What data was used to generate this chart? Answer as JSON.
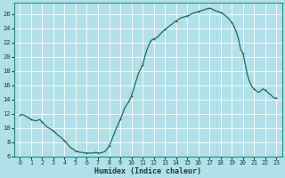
{
  "xlabel": "Humidex (Indice chaleur)",
  "bg_color": "#b2e0e8",
  "grid_color": "#ffffff",
  "line_color": "#1a6b5a",
  "xlim": [
    -0.5,
    23.5
  ],
  "ylim": [
    6,
    27.5
  ],
  "yticks": [
    6,
    8,
    10,
    12,
    14,
    16,
    18,
    20,
    22,
    24,
    26
  ],
  "xticks": [
    0,
    1,
    2,
    3,
    4,
    5,
    6,
    7,
    8,
    9,
    10,
    11,
    12,
    13,
    14,
    15,
    16,
    17,
    18,
    19,
    20,
    21,
    22,
    23
  ],
  "x": [
    0,
    0.2,
    0.4,
    0.6,
    0.8,
    1.0,
    1.2,
    1.4,
    1.6,
    1.8,
    2.0,
    2.2,
    2.4,
    2.6,
    2.8,
    3.0,
    3.2,
    3.4,
    3.6,
    3.8,
    4.0,
    4.2,
    4.4,
    4.6,
    4.8,
    5.0,
    5.2,
    5.4,
    5.6,
    5.8,
    6.0,
    6.2,
    6.4,
    6.6,
    6.8,
    7.0,
    7.2,
    7.4,
    7.6,
    7.8,
    8.0,
    8.2,
    8.4,
    8.6,
    8.8,
    9.0,
    9.2,
    9.4,
    9.6,
    9.8,
    10.0,
    10.2,
    10.4,
    10.6,
    10.8,
    11.0,
    11.2,
    11.4,
    11.6,
    11.8,
    12.0,
    12.2,
    12.4,
    12.6,
    12.8,
    13.0,
    13.2,
    13.4,
    13.6,
    13.8,
    14.0,
    14.2,
    14.4,
    14.6,
    14.8,
    15.0,
    15.2,
    15.4,
    15.6,
    15.8,
    16.0,
    16.2,
    16.4,
    16.6,
    16.8,
    17.0,
    17.2,
    17.4,
    17.6,
    17.8,
    18.0,
    18.2,
    18.4,
    18.6,
    18.8,
    19.0,
    19.2,
    19.4,
    19.6,
    19.8,
    20.0,
    20.2,
    20.4,
    20.6,
    20.8,
    21.0,
    21.2,
    21.4,
    21.6,
    21.8,
    22.0,
    22.2,
    22.4,
    22.6,
    22.8,
    23.0
  ],
  "y": [
    11.8,
    11.9,
    11.8,
    11.6,
    11.4,
    11.2,
    11.1,
    11.0,
    11.1,
    11.2,
    10.8,
    10.5,
    10.2,
    10.0,
    9.8,
    9.6,
    9.3,
    9.0,
    8.8,
    8.5,
    8.2,
    7.9,
    7.5,
    7.2,
    7.0,
    6.8,
    6.7,
    6.6,
    6.6,
    6.5,
    6.5,
    6.5,
    6.5,
    6.5,
    6.6,
    6.5,
    6.5,
    6.6,
    6.7,
    7.0,
    7.5,
    8.2,
    9.0,
    9.8,
    10.5,
    11.2,
    12.0,
    12.8,
    13.3,
    13.8,
    14.5,
    15.5,
    16.5,
    17.5,
    18.2,
    18.8,
    20.0,
    21.0,
    21.8,
    22.3,
    22.5,
    22.6,
    22.8,
    23.2,
    23.5,
    23.8,
    24.0,
    24.3,
    24.5,
    24.8,
    25.0,
    25.2,
    25.4,
    25.5,
    25.6,
    25.7,
    25.8,
    26.0,
    26.1,
    26.2,
    26.3,
    26.4,
    26.5,
    26.6,
    26.7,
    26.8,
    26.7,
    26.5,
    26.4,
    26.3,
    26.2,
    26.0,
    25.8,
    25.5,
    25.2,
    24.8,
    24.2,
    23.5,
    22.5,
    21.0,
    20.5,
    19.0,
    17.5,
    16.5,
    15.8,
    15.5,
    15.2,
    15.0,
    15.2,
    15.5,
    15.3,
    15.0,
    14.8,
    14.5,
    14.2,
    14.2
  ]
}
